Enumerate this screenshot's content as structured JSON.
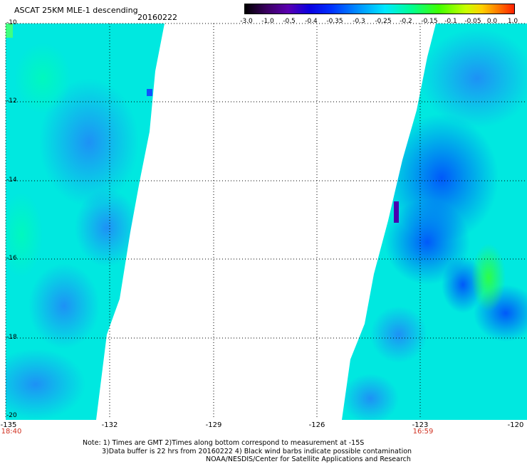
{
  "header": {
    "title": "ASCAT 25KM MLE-1 descending",
    "date": "20160222"
  },
  "colorbar": {
    "tick_labels": [
      "-3.0",
      "-1.0",
      "-0.5",
      "-0.4",
      "-0.35",
      "-0.3",
      "-0.25",
      "-0.2",
      "-0.15",
      "-0.1",
      "-0.05",
      "0.0",
      "1.0"
    ]
  },
  "map": {
    "latitude_labels": [
      "-10",
      "-12",
      "-14",
      "-16",
      "-18",
      "-20"
    ],
    "longitude_labels": [
      "-135",
      "-132",
      "-129",
      "-126",
      "-123",
      "-120"
    ],
    "swath_times": {
      "left": "18:40",
      "right": "16:59"
    },
    "colors": {
      "background": "#ffffff",
      "dominant_field": "#00e8e0",
      "low_values": "#0040ff",
      "high_values": "#30ff40"
    }
  },
  "notes": {
    "line1": "Note: 1) Times are GMT 2)Times along bottom correspond to measurement at -15S",
    "line2": "3)Data buffer is 22 hrs from 20160222 4) Black wind barbs indicate possible contamination",
    "line3": "NOAA/NESDIS/Center for Satellite Applications and Research"
  }
}
